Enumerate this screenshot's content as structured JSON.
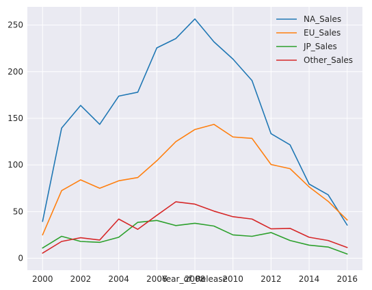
{
  "chart_data": {
    "type": "line",
    "title": "",
    "xlabel": "Year_of_Release",
    "ylabel": "",
    "x": [
      2000,
      2001,
      2002,
      2003,
      2004,
      2005,
      2006,
      2007,
      2008,
      2009,
      2010,
      2011,
      2012,
      2013,
      2014,
      2015,
      2016
    ],
    "xlim": [
      1999.2,
      2016.8
    ],
    "ylim": [
      -12.8,
      269.5
    ],
    "x_ticks": [
      2000,
      2002,
      2004,
      2006,
      2008,
      2010,
      2012,
      2014,
      2016
    ],
    "y_ticks": [
      0,
      50,
      100,
      150,
      200,
      250
    ],
    "grid": true,
    "legend_position": "top-right",
    "series": [
      {
        "name": "NA_Sales",
        "color": "#1f77b4",
        "values": [
          39.5,
          139.5,
          163.8,
          143.5,
          173.8,
          178.0,
          225.5,
          235.5,
          256.5,
          232.0,
          213.5,
          190.5,
          133.5,
          121.5,
          79.5,
          68.0,
          35.5
        ]
      },
      {
        "name": "EU_Sales",
        "color": "#ff7f0e",
        "values": [
          25.0,
          72.5,
          84.0,
          75.0,
          83.0,
          86.5,
          104.5,
          125.0,
          138.0,
          143.5,
          130.0,
          128.5,
          100.5,
          96.0,
          76.5,
          61.0,
          41.0
        ]
      },
      {
        "name": "JP_Sales",
        "color": "#2ca02c",
        "values": [
          11.0,
          23.5,
          18.0,
          17.0,
          22.5,
          38.5,
          40.5,
          35.0,
          37.5,
          34.5,
          25.0,
          23.5,
          27.5,
          19.0,
          14.0,
          12.0,
          4.5
        ]
      },
      {
        "name": "Other_Sales",
        "color": "#d62728",
        "values": [
          5.5,
          18.0,
          22.0,
          19.5,
          42.0,
          31.0,
          46.0,
          60.5,
          58.0,
          50.5,
          44.5,
          42.0,
          31.5,
          32.0,
          22.5,
          19.0,
          11.5
        ]
      }
    ]
  }
}
